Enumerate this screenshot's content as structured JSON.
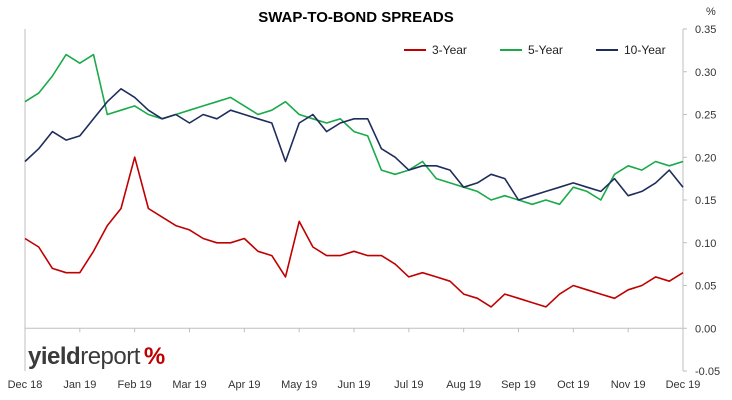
{
  "chart_data": {
    "type": "line",
    "title": "SWAP-TO-BOND SPREADS",
    "y_unit": "%",
    "ylim": [
      -0.05,
      0.35
    ],
    "y_ticks": [
      "0.35",
      "0.30",
      "0.25",
      "0.20",
      "0.15",
      "0.10",
      "0.05",
      "0.00",
      "-0.05"
    ],
    "x_ticks": [
      "Dec 18",
      "Jan 19",
      "Feb 19",
      "Mar 19",
      "Apr 19",
      "May 19",
      "Jun 19",
      "Jul 19",
      "Aug 19",
      "Sep 19",
      "Oct 19",
      "Nov 19",
      "Dec 19"
    ],
    "x_index_range": [
      0,
      12
    ],
    "legend_position": "top-right",
    "grid": false,
    "series": [
      {
        "name": "3-Year",
        "color": "#c00000",
        "x": [
          0,
          0.25,
          0.5,
          0.75,
          1,
          1.25,
          1.5,
          1.75,
          2,
          2.25,
          2.5,
          2.75,
          3,
          3.25,
          3.5,
          3.75,
          4,
          4.25,
          4.5,
          4.75,
          5,
          5.25,
          5.5,
          5.75,
          6,
          6.25,
          6.5,
          6.75,
          7,
          7.25,
          7.5,
          7.75,
          8,
          8.25,
          8.5,
          8.75,
          9,
          9.25,
          9.5,
          9.75,
          10,
          10.25,
          10.5,
          10.75,
          11,
          11.25,
          11.5,
          11.75,
          12
        ],
        "values": [
          0.105,
          0.095,
          0.07,
          0.065,
          0.065,
          0.09,
          0.12,
          0.14,
          0.2,
          0.14,
          0.13,
          0.12,
          0.115,
          0.105,
          0.1,
          0.1,
          0.105,
          0.09,
          0.085,
          0.06,
          0.125,
          0.095,
          0.085,
          0.085,
          0.09,
          0.085,
          0.085,
          0.075,
          0.06,
          0.065,
          0.06,
          0.055,
          0.04,
          0.035,
          0.025,
          0.04,
          0.035,
          0.03,
          0.025,
          0.04,
          0.05,
          0.045,
          0.04,
          0.035,
          0.045,
          0.05,
          0.06,
          0.055,
          0.065
        ]
      },
      {
        "name": "5-Year",
        "color": "#1aaa4a",
        "x": [
          0,
          0.25,
          0.5,
          0.75,
          1,
          1.25,
          1.5,
          1.75,
          2,
          2.25,
          2.5,
          2.75,
          3,
          3.25,
          3.5,
          3.75,
          4,
          4.25,
          4.5,
          4.75,
          5,
          5.25,
          5.5,
          5.75,
          6,
          6.25,
          6.5,
          6.75,
          7,
          7.25,
          7.5,
          7.75,
          8,
          8.25,
          8.5,
          8.75,
          9,
          9.25,
          9.5,
          9.75,
          10,
          10.25,
          10.5,
          10.75,
          11,
          11.25,
          11.5,
          11.75,
          12
        ],
        "values": [
          0.265,
          0.275,
          0.295,
          0.32,
          0.31,
          0.32,
          0.25,
          0.255,
          0.26,
          0.25,
          0.245,
          0.25,
          0.255,
          0.26,
          0.265,
          0.27,
          0.26,
          0.25,
          0.255,
          0.265,
          0.25,
          0.245,
          0.24,
          0.245,
          0.23,
          0.225,
          0.185,
          0.18,
          0.185,
          0.195,
          0.175,
          0.17,
          0.165,
          0.16,
          0.15,
          0.155,
          0.15,
          0.145,
          0.15,
          0.145,
          0.165,
          0.16,
          0.15,
          0.18,
          0.19,
          0.185,
          0.195,
          0.19,
          0.195
        ]
      },
      {
        "name": "10-Year",
        "color": "#1f2d5c",
        "x": [
          0,
          0.25,
          0.5,
          0.75,
          1,
          1.25,
          1.5,
          1.75,
          2,
          2.25,
          2.5,
          2.75,
          3,
          3.25,
          3.5,
          3.75,
          4,
          4.25,
          4.5,
          4.75,
          5,
          5.25,
          5.5,
          5.75,
          6,
          6.25,
          6.5,
          6.75,
          7,
          7.25,
          7.5,
          7.75,
          8,
          8.25,
          8.5,
          8.75,
          9,
          9.25,
          9.5,
          9.75,
          10,
          10.25,
          10.5,
          10.75,
          11,
          11.25,
          11.5,
          11.75,
          12
        ],
        "values": [
          0.195,
          0.21,
          0.23,
          0.22,
          0.225,
          0.245,
          0.265,
          0.28,
          0.27,
          0.255,
          0.245,
          0.25,
          0.24,
          0.25,
          0.245,
          0.255,
          0.25,
          0.245,
          0.24,
          0.195,
          0.24,
          0.25,
          0.23,
          0.24,
          0.245,
          0.245,
          0.21,
          0.2,
          0.185,
          0.19,
          0.19,
          0.185,
          0.165,
          0.17,
          0.18,
          0.175,
          0.15,
          0.155,
          0.16,
          0.165,
          0.17,
          0.165,
          0.16,
          0.175,
          0.155,
          0.16,
          0.17,
          0.185,
          0.165
        ]
      }
    ]
  },
  "logo": {
    "part1": "yield",
    "part2": "report",
    "pct": "%"
  }
}
